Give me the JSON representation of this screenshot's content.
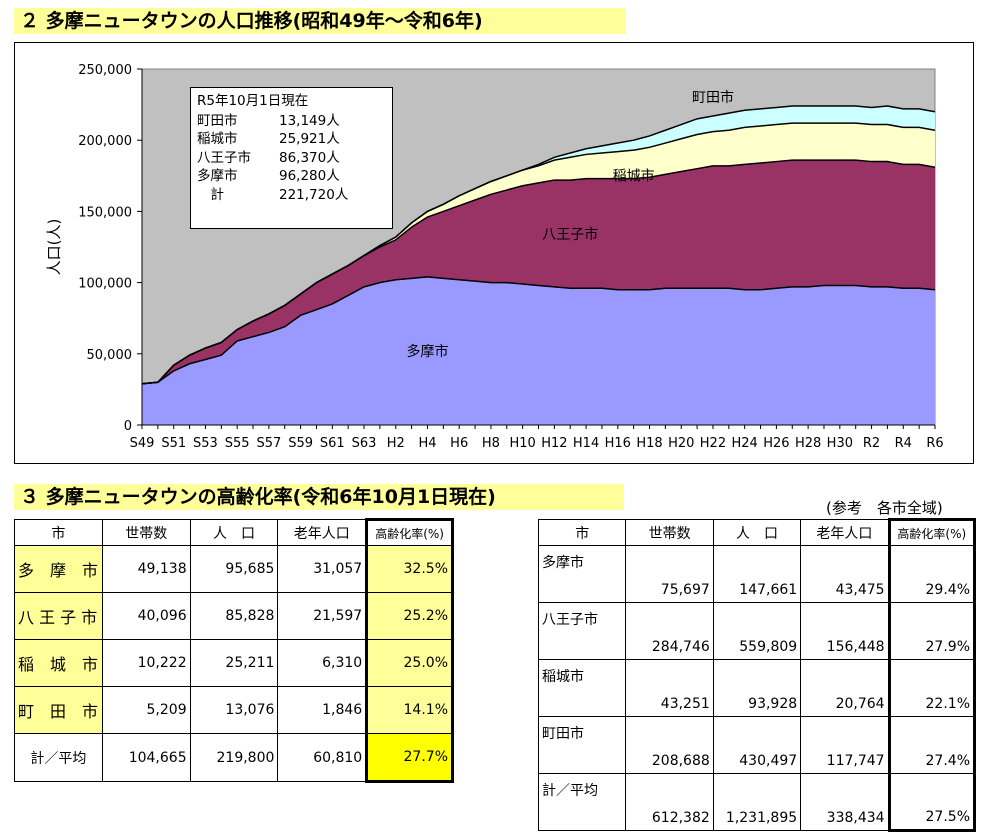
{
  "section1": {
    "title": "２ 多摩ニュータウンの人口推移(昭和49年～令和6年)"
  },
  "chart_data": {
    "type": "area",
    "stacked": true,
    "title": "多摩ニュータウンの人口推移(昭和49年～令和6年)",
    "ylabel": "人口(人)",
    "xlabel": "",
    "ylim": [
      0,
      250000
    ],
    "yticks": [
      "0",
      "50,000",
      "100,000",
      "150,000",
      "200,000",
      "250,000"
    ],
    "x": [
      "S49",
      "S50",
      "S51",
      "S52",
      "S53",
      "S54",
      "S55",
      "S56",
      "S57",
      "S58",
      "S59",
      "S60",
      "S61",
      "S62",
      "S63",
      "H1",
      "H2",
      "H3",
      "H4",
      "H5",
      "H6",
      "H7",
      "H8",
      "H9",
      "H10",
      "H11",
      "H12",
      "H13",
      "H14",
      "H15",
      "H16",
      "H17",
      "H18",
      "H19",
      "H20",
      "H21",
      "H22",
      "H23",
      "H24",
      "H25",
      "H26",
      "H27",
      "H28",
      "H29",
      "H30",
      "H31",
      "R2",
      "R3",
      "R4",
      "R5",
      "R6"
    ],
    "xtick_labels": [
      "S49",
      "S51",
      "S53",
      "S55",
      "S57",
      "S59",
      "S61",
      "S63",
      "H2",
      "H4",
      "H6",
      "H8",
      "H10",
      "H12",
      "H14",
      "H16",
      "H18",
      "H20",
      "H22",
      "H24",
      "H26",
      "H28",
      "H30",
      "R2",
      "R4",
      "R6"
    ],
    "series": [
      {
        "name": "多摩市",
        "color": "#9999ff",
        "values": [
          29000,
          30000,
          38000,
          43000,
          46000,
          49000,
          59000,
          62000,
          65000,
          69000,
          77000,
          81000,
          85000,
          91000,
          97000,
          100000,
          102000,
          103000,
          104000,
          103000,
          102000,
          101000,
          100000,
          100000,
          99000,
          98000,
          97000,
          96000,
          96000,
          96000,
          95000,
          95000,
          95000,
          96000,
          96000,
          96000,
          96000,
          96000,
          95000,
          95000,
          96000,
          97000,
          97000,
          98000,
          98000,
          98000,
          97000,
          97000,
          96000,
          96000,
          95000
        ]
      },
      {
        "name": "八王子市",
        "color": "#993366",
        "values": [
          0,
          0,
          4000,
          6000,
          8000,
          9000,
          8000,
          11000,
          13000,
          15000,
          15000,
          19000,
          21000,
          21000,
          22000,
          25000,
          28000,
          36000,
          42000,
          47000,
          52000,
          57000,
          62000,
          65000,
          69000,
          72000,
          75000,
          76000,
          77000,
          77000,
          78000,
          78000,
          79000,
          80000,
          82000,
          84000,
          86000,
          86000,
          88000,
          89000,
          89000,
          89000,
          89000,
          88000,
          88000,
          88000,
          88000,
          88000,
          87000,
          87000,
          86000
        ]
      },
      {
        "name": "稲城市",
        "color": "#ffffcc",
        "values": [
          0,
          0,
          0,
          0,
          0,
          0,
          0,
          0,
          0,
          0,
          0,
          0,
          0,
          0,
          0,
          1000,
          2000,
          3000,
          4000,
          5000,
          7000,
          8000,
          9000,
          10000,
          11000,
          12000,
          14000,
          16000,
          17000,
          18000,
          19000,
          20000,
          21000,
          22000,
          23000,
          24000,
          24000,
          25000,
          26000,
          26000,
          26000,
          26000,
          26000,
          26000,
          26000,
          26000,
          26000,
          26000,
          26000,
          26000,
          26000
        ]
      },
      {
        "name": "町田市",
        "color": "#ccffff",
        "values": [
          0,
          0,
          0,
          0,
          0,
          0,
          0,
          0,
          0,
          0,
          0,
          0,
          0,
          0,
          0,
          0,
          0,
          0,
          0,
          0,
          0,
          0,
          0,
          0,
          0,
          1000,
          2000,
          3000,
          4000,
          5000,
          6000,
          7000,
          8000,
          9000,
          10000,
          11000,
          11000,
          12000,
          12000,
          12000,
          12000,
          12000,
          12000,
          12000,
          12000,
          12000,
          12000,
          13000,
          13000,
          13000,
          13000
        ]
      }
    ],
    "area_labels": [
      "多摩市",
      "八王子市",
      "稲城市",
      "町田市"
    ],
    "annotation": {
      "title": "R5年10月1日現在",
      "rows": [
        {
          "city": "町田市",
          "value": "13,149人"
        },
        {
          "city": "稲城市",
          "value": "25,921人"
        },
        {
          "city": "八王子市",
          "value": "86,370人"
        },
        {
          "city": "多摩市",
          "value": "96,280人"
        },
        {
          "city": "　計",
          "value": "221,720人"
        }
      ]
    },
    "grid": false,
    "plot_bg": "#c0c0c0"
  },
  "section2": {
    "title": "３ 多摩ニュータウンの高齢化率(令和6年10月1日現在)"
  },
  "reference_label": "(参考　各市全域)",
  "table_nt": {
    "headers": [
      "市",
      "世帯数",
      "人　口",
      "老年人口",
      "高齢化率(%)"
    ],
    "rows": [
      {
        "city": "多　摩　市",
        "households": "49,138",
        "population": "95,685",
        "elderly": "31,057",
        "rate": "32.5%"
      },
      {
        "city": "八 王 子 市",
        "households": "40,096",
        "population": "85,828",
        "elderly": "21,597",
        "rate": "25.2%"
      },
      {
        "city": "稲　城　市",
        "households": "10,222",
        "population": "25,211",
        "elderly": "6,310",
        "rate": "25.0%"
      },
      {
        "city": "町　田　市",
        "households": "5,209",
        "population": "13,076",
        "elderly": "1,846",
        "rate": "14.1%"
      },
      {
        "city": "計／平均",
        "households": "104,665",
        "population": "219,800",
        "elderly": "60,810",
        "rate": "27.7%"
      }
    ]
  },
  "table_city": {
    "headers": [
      "市",
      "世帯数",
      "人　口",
      "老年人口",
      "高齢化率(%)"
    ],
    "rows": [
      {
        "city": "多摩市",
        "households": "75,697",
        "population": "147,661",
        "elderly": "43,475",
        "rate": "29.4%"
      },
      {
        "city": "八王子市",
        "households": "284,746",
        "population": "559,809",
        "elderly": "156,448",
        "rate": "27.9%"
      },
      {
        "city": "稲城市",
        "households": "43,251",
        "population": "93,928",
        "elderly": "20,764",
        "rate": "22.1%"
      },
      {
        "city": "町田市",
        "households": "208,688",
        "population": "430,497",
        "elderly": "117,747",
        "rate": "27.4%"
      },
      {
        "city": "計／平均",
        "households": "612,382",
        "population": "1,231,895",
        "elderly": "338,434",
        "rate": "27.5%"
      }
    ]
  }
}
